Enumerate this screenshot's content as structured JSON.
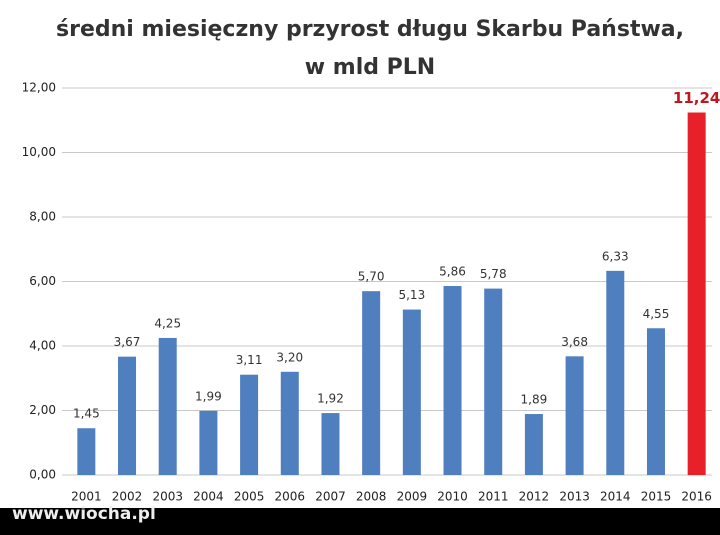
{
  "chart_data": {
    "type": "bar",
    "title": "średni miesięczny przyrost długu Skarbu Państwa,",
    "subtitle": "w mld PLN",
    "categories": [
      "2001",
      "2002",
      "2003",
      "2004",
      "2005",
      "2006",
      "2007",
      "2008",
      "2009",
      "2010",
      "2011",
      "2012",
      "2013",
      "2014",
      "2015",
      "2016"
    ],
    "values": [
      1.45,
      3.67,
      4.25,
      1.99,
      3.11,
      3.2,
      1.92,
      5.7,
      5.13,
      5.86,
      5.78,
      1.89,
      3.68,
      6.33,
      4.55,
      11.24
    ],
    "value_labels": [
      "1,45",
      "3,67",
      "4,25",
      "1,99",
      "3,11",
      "3,20",
      "1,92",
      "5,70",
      "5,13",
      "5,86",
      "5,78",
      "1,89",
      "3,68",
      "6,33",
      "4,55",
      "11,24"
    ],
    "colors": [
      "#4f7fbf",
      "#4f7fbf",
      "#4f7fbf",
      "#4f7fbf",
      "#4f7fbf",
      "#4f7fbf",
      "#4f7fbf",
      "#4f7fbf",
      "#4f7fbf",
      "#4f7fbf",
      "#4f7fbf",
      "#4f7fbf",
      "#4f7fbf",
      "#4f7fbf",
      "#4f7fbf",
      "#e8202a"
    ],
    "value_label_colors": [
      "#333",
      "#333",
      "#333",
      "#333",
      "#333",
      "#333",
      "#333",
      "#333",
      "#333",
      "#333",
      "#333",
      "#333",
      "#333",
      "#333",
      "#333",
      "#c0171f"
    ],
    "ylim": [
      0,
      12
    ],
    "yticks": [
      {
        "value": 0,
        "label": "0,00"
      },
      {
        "value": 2,
        "label": "2,00"
      },
      {
        "value": 4,
        "label": "4,00"
      },
      {
        "value": 6,
        "label": "6,00"
      },
      {
        "value": 8,
        "label": "8,00"
      },
      {
        "value": 10,
        "label": "10,00"
      },
      {
        "value": 12,
        "label": "12,00"
      }
    ],
    "grid": true,
    "watermark": "www.wiocha.pl"
  }
}
